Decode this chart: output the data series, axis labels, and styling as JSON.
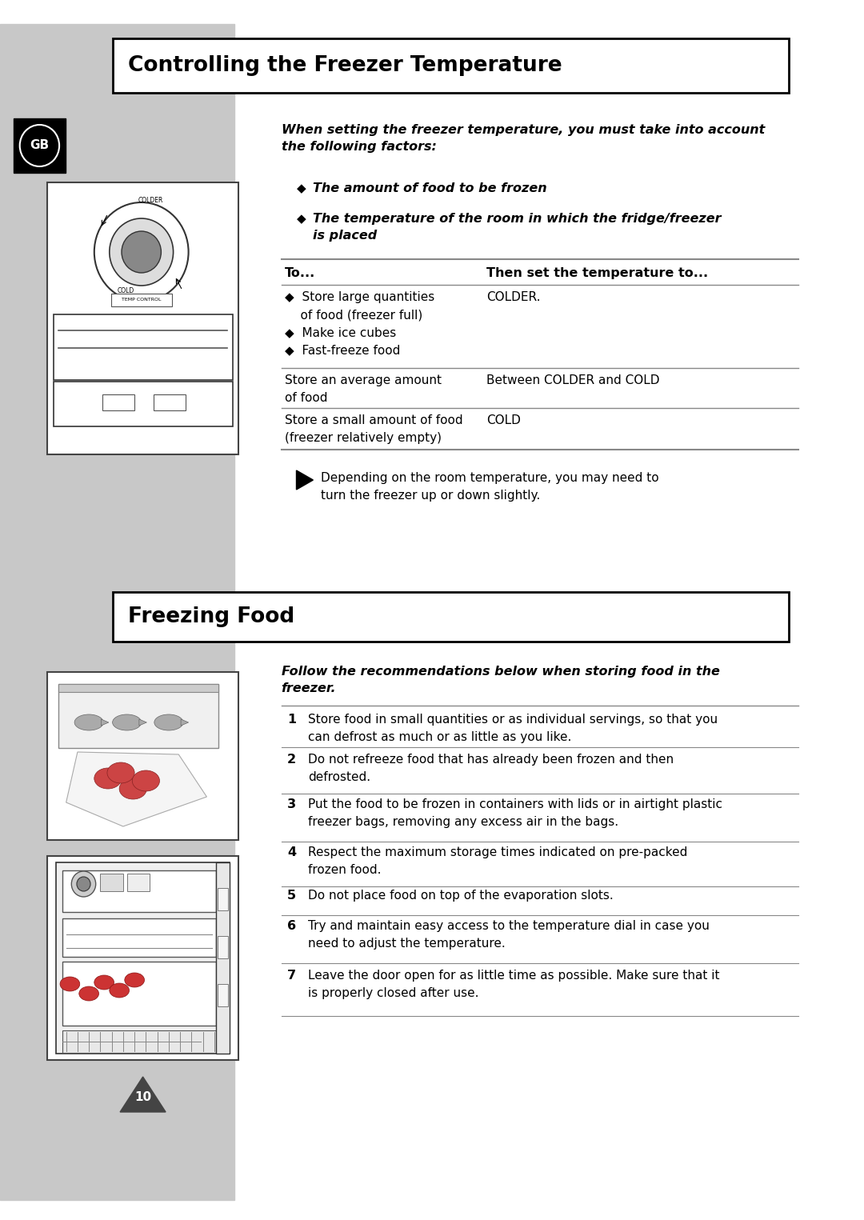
{
  "page_bg": "#ffffff",
  "sidebar_color": "#c8c8c8",
  "gb_box_color": "#000000",
  "gb_text": "GB",
  "title1": "Controlling the Freezer Temperature",
  "title1_box_bg": "#ffffff",
  "title1_box_border": "#000000",
  "title2": "Freezing Food",
  "title2_box_bg": "#ffffff",
  "title2_box_border": "#000000",
  "intro_text1": "When setting the freezer temperature, you must take into account\nthe following factors:",
  "bullet1": "The amount of food to be frozen",
  "bullet2": "The temperature of the room in which the fridge/freezer\nis placed",
  "col_header_left": "To...",
  "col_header_right": "Then set the temperature to...",
  "note_text": "Depending on the room temperature, you may need to\nturn the freezer up or down slightly.",
  "intro_text2": "Follow the recommendations below when storing food in the\nfreezer.",
  "numbered_items": [
    "Store food in small quantities or as individual servings, so that you\ncan defrost as much or as little as you like.",
    "Do not refreeze food that has already been frozen and then\ndefrosted.",
    "Put the food to be frozen in containers with lids or in airtight plastic\nfreezer bags, removing any excess air in the bags.",
    "Respect the maximum storage times indicated on pre-packed\nfrozen food.",
    "Do not place food on top of the evaporation slots.",
    "Try and maintain easy access to the temperature dial in case you\nneed to adjust the temperature.",
    "Leave the door open for as little time as possible. Make sure that it\nis properly closed after use."
  ],
  "page_number": "10"
}
